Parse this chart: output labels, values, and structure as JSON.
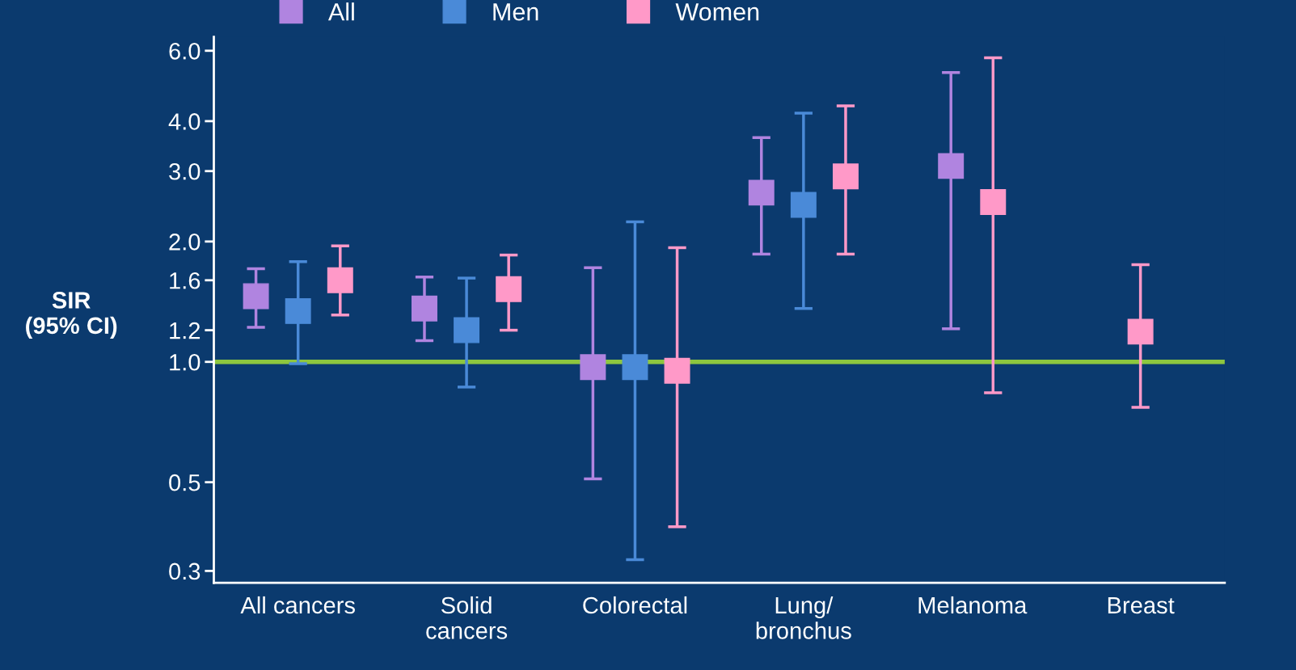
{
  "chart_data": {
    "type": "scatter",
    "ylabel": "SIR\n(95% CI)",
    "categories": [
      "All cancers",
      "Solid\ncancers",
      "Colorectal",
      "Lung/\nbronchus",
      "Melanoma",
      "Breast"
    ],
    "series": [
      {
        "name": "All",
        "color": "#b084e0",
        "values": [
          1.46,
          1.36,
          0.97,
          2.65,
          3.09,
          null
        ],
        "errors": [
          [
            1.22,
            1.71
          ],
          [
            1.13,
            1.63
          ],
          [
            0.51,
            1.72
          ],
          [
            1.86,
            3.64
          ],
          [
            1.21,
            5.29
          ],
          null
        ]
      },
      {
        "name": "Men",
        "color": "#4a8ad8",
        "values": [
          1.34,
          1.2,
          0.97,
          2.47,
          null,
          null
        ],
        "errors": [
          [
            0.99,
            1.78
          ],
          [
            0.865,
            1.62
          ],
          [
            0.32,
            2.24
          ],
          [
            1.36,
            4.19
          ],
          null,
          null
        ]
      },
      {
        "name": "Women",
        "color": "#ff99c8",
        "values": [
          1.6,
          1.52,
          0.95,
          2.91,
          2.51,
          1.19
        ],
        "errors": [
          [
            1.31,
            1.95
          ],
          [
            1.2,
            1.85
          ],
          [
            0.387,
            1.93
          ],
          [
            1.86,
            4.37
          ],
          [
            0.837,
            5.76
          ],
          [
            0.77,
            1.75
          ]
        ]
      }
    ],
    "log": "y",
    "ylim": [
      0.28,
      6.5
    ],
    "yticks": [
      {
        "value": 0.3,
        "label": "0.3"
      },
      {
        "value": 0.5,
        "label": "0.5"
      },
      {
        "value": 1,
        "label": "1.0"
      },
      {
        "value": 1.2,
        "label": "1.2"
      },
      {
        "value": 1.6,
        "label": "1.6"
      },
      {
        "value": 2,
        "label": "2.0"
      },
      {
        "value": 3,
        "label": "3.0"
      },
      {
        "value": 4,
        "label": "4.0"
      },
      {
        "value": 6,
        "label": "6.0"
      }
    ],
    "ref_lines": [
      {
        "axis": "y",
        "value": 1,
        "color": "#8dc63f",
        "line_style": "solid"
      }
    ],
    "marker": "square",
    "grid": false,
    "legend": "top"
  }
}
